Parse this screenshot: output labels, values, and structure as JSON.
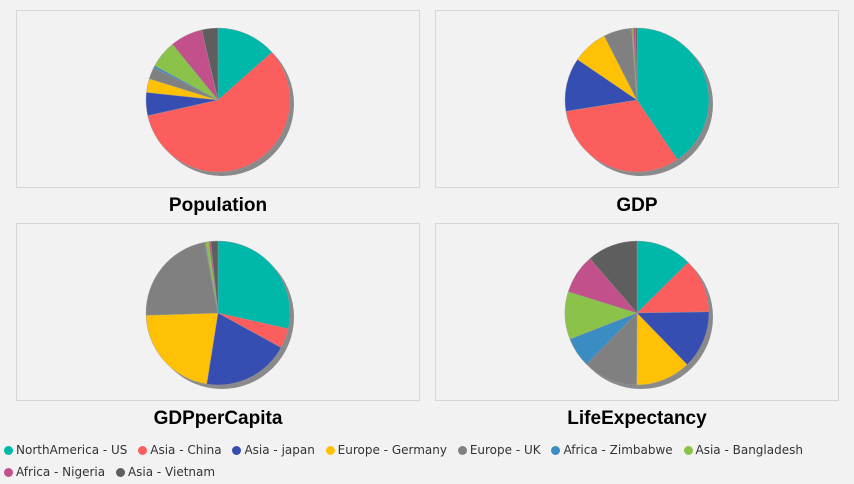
{
  "legend": [
    {
      "label": "NorthAmerica - US",
      "color": "#00b8a9"
    },
    {
      "label": "Asia - China",
      "color": "#fc5e5e"
    },
    {
      "label": "Asia - japan",
      "color": "#364db1"
    },
    {
      "label": "Europe - Germany",
      "color": "#ffc106"
    },
    {
      "label": "Europe - UK",
      "color": "#808080"
    },
    {
      "label": "Africa - Zimbabwe",
      "color": "#3a8dc2"
    },
    {
      "label": "Asia - Bangladesh",
      "color": "#8bc34a"
    },
    {
      "label": "Africa - Nigeria",
      "color": "#c2508a"
    },
    {
      "label": "Asia - Vietnam",
      "color": "#5e5e5e"
    }
  ],
  "charts": [
    {
      "title": "Population"
    },
    {
      "title": "GDP"
    },
    {
      "title": "GDPperCapita"
    },
    {
      "title": "LifeExpectancy"
    }
  ],
  "chart_data": [
    {
      "type": "pie",
      "title": "Population",
      "categories": [
        "NorthAmerica - US",
        "Asia - China",
        "Asia - japan",
        "Europe - Germany",
        "Europe - UK",
        "Africa - Zimbabwe",
        "Asia - Bangladesh",
        "Africa - Nigeria",
        "Asia - Vietnam"
      ],
      "values": [
        13,
        56,
        5,
        3,
        2.5,
        0.5,
        6,
        7,
        3.5
      ],
      "legend_position": "bottom"
    },
    {
      "type": "pie",
      "title": "GDP",
      "categories": [
        "NorthAmerica - US",
        "Asia - China",
        "Asia - japan",
        "Europe - Germany",
        "Europe - UK",
        "Africa - Zimbabwe",
        "Asia - Bangladesh",
        "Africa - Nigeria",
        "Asia - Vietnam"
      ],
      "values": [
        40.5,
        32,
        12,
        8,
        6.3,
        0.05,
        0.3,
        0.5,
        0.35
      ],
      "legend_position": "bottom"
    },
    {
      "type": "pie",
      "title": "GDPperCapita",
      "categories": [
        "NorthAmerica - US",
        "Asia - China",
        "Asia - japan",
        "Europe - Germany",
        "Europe - UK",
        "Africa - Zimbabwe",
        "Asia - Bangladesh",
        "Africa - Nigeria",
        "Asia - Vietnam"
      ],
      "values": [
        28.5,
        4.5,
        19.5,
        22,
        22.5,
        0.2,
        0.8,
        0.4,
        1.6
      ],
      "legend_position": "bottom"
    },
    {
      "type": "pie",
      "title": "LifeExpectancy",
      "categories": [
        "NorthAmerica - US",
        "Asia - China",
        "Asia - japan",
        "Europe - Germany",
        "Europe - UK",
        "Africa - Zimbabwe",
        "Asia - Bangladesh",
        "Africa - Nigeria",
        "Asia - Vietnam"
      ],
      "values": [
        12.2,
        11.8,
        12.6,
        12.0,
        11.9,
        6.5,
        10.4,
        8.6,
        11.0
      ],
      "legend_position": "bottom"
    }
  ]
}
